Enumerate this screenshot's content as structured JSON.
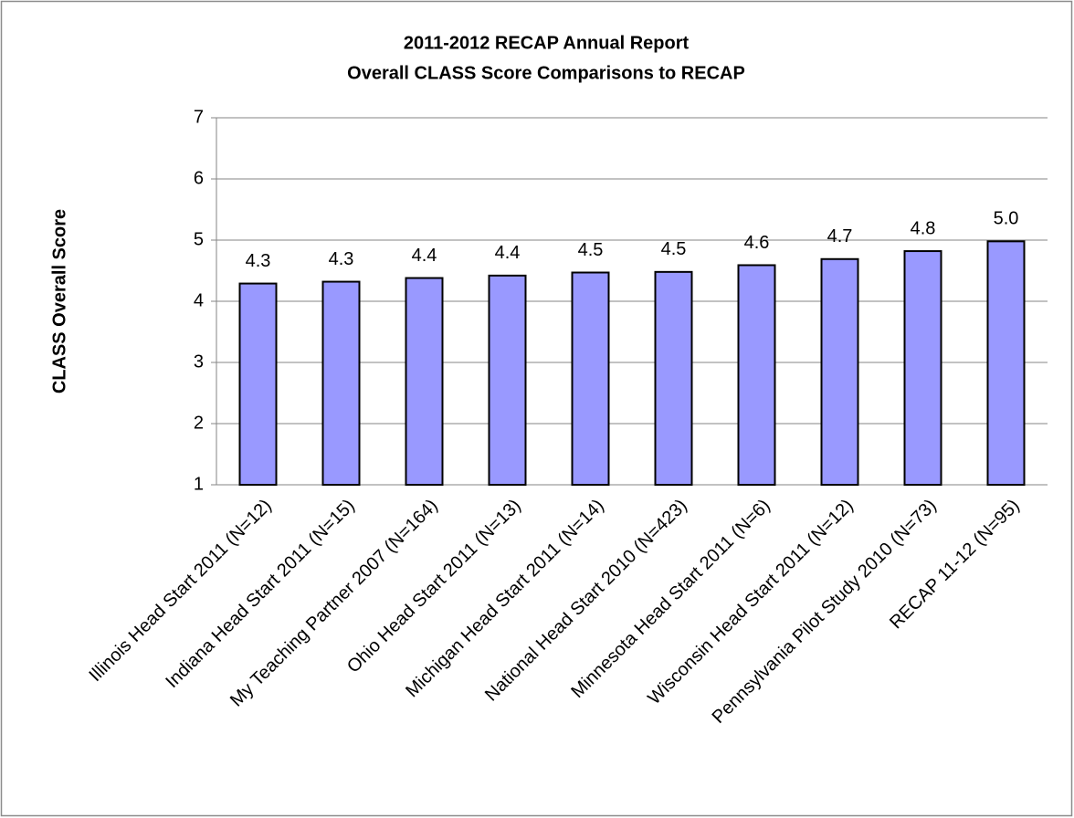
{
  "chart_data": {
    "type": "bar",
    "title": "2011-2012 RECAP Annual Report",
    "subtitle": "Overall CLASS Score Comparisons to RECAP",
    "y_label": "CLASS Overall Score",
    "categories": [
      "Illinois Head Start 2011 (N=12)",
      "Indiana Head Start 2011 (N=15)",
      "My Teaching Partner 2007 (N=164)",
      "Ohio Head Start 2011 (N=13)",
      "Michigan Head Start 2011 (N=14)",
      "National Head Start 2010 (N=423)",
      "Minnesota Head Start 2011 (N=6)",
      "Wisconsin Head Start 2011 (N=12)",
      "Pennsylvania Pilot Study 2010 (N=73)",
      "RECAP 11-12 (N=95)"
    ],
    "values": [
      4.29,
      4.32,
      4.38,
      4.42,
      4.47,
      4.48,
      4.59,
      4.69,
      4.82,
      4.98
    ],
    "value_labels": [
      "4.3",
      "4.3",
      "4.4",
      "4.4",
      "4.5",
      "4.5",
      "4.6",
      "4.7",
      "4.8",
      "5.0"
    ],
    "color": "#9999ff",
    "ylim": [
      1,
      7
    ],
    "yticks": [
      1,
      2,
      3,
      4,
      5,
      6,
      7
    ],
    "grid": true
  }
}
